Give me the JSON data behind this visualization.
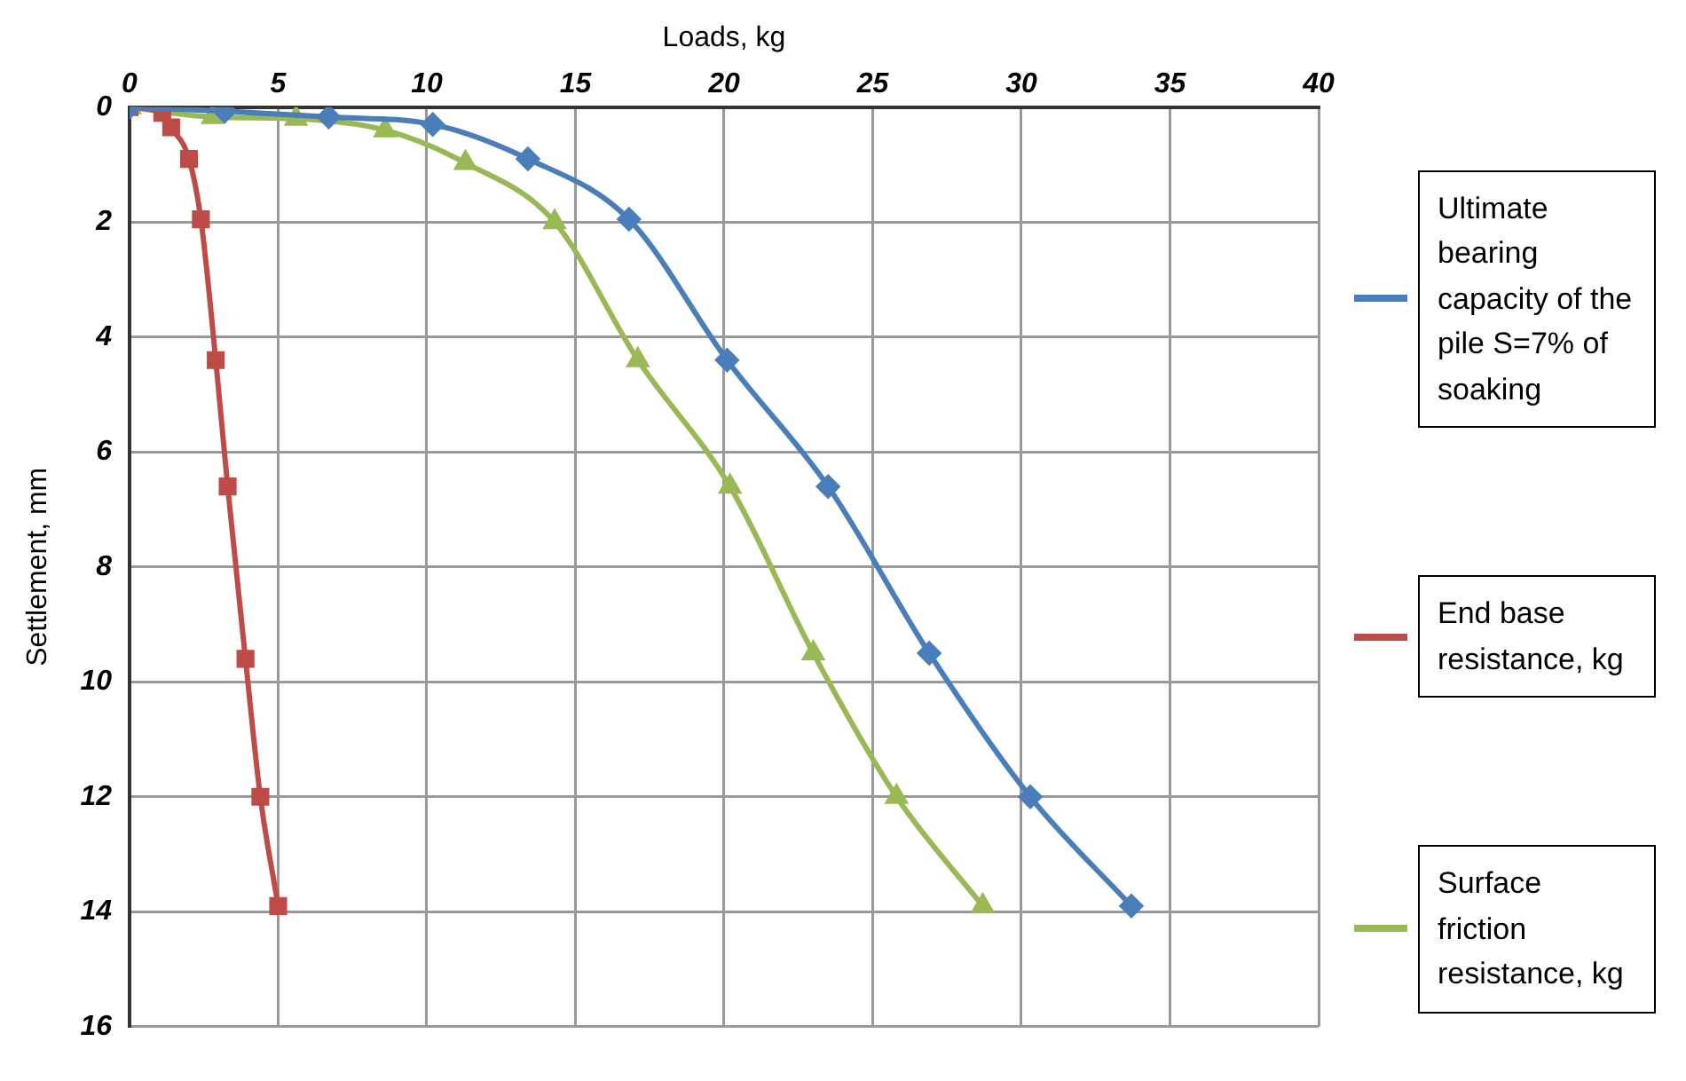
{
  "chart_data": {
    "type": "line",
    "xlabel": "Loads, kg",
    "ylabel": "Settlement, mm",
    "xlim": [
      0,
      40
    ],
    "xticks": [
      0,
      5,
      10,
      15,
      20,
      25,
      30,
      35,
      40
    ],
    "ylim": [
      16,
      0
    ],
    "yticks": [
      0,
      2,
      4,
      6,
      8,
      10,
      12,
      14,
      16
    ],
    "grid": true,
    "legend": "right",
    "series": [
      {
        "name": "Ultimate bearing capacity of the pile S=7% of soaking",
        "color": "#4a7ebb",
        "marker": "diamond",
        "x": [
          0,
          3.2,
          6.7,
          10.2,
          13.4,
          16.8,
          20.1,
          23.5,
          26.9,
          30.3,
          33.7
        ],
        "values": [
          0,
          0.07,
          0.17,
          0.3,
          0.9,
          1.95,
          4.4,
          6.6,
          9.5,
          12,
          13.9
        ]
      },
      {
        "name": "End base resistance, kg",
        "color": "#be4b48",
        "marker": "square",
        "x": [
          0,
          1.1,
          1.4,
          2,
          2.4,
          2.9,
          3.3,
          3.9,
          4.4,
          5
        ],
        "values": [
          0,
          0.1,
          0.35,
          0.9,
          1.95,
          4.4,
          6.6,
          9.6,
          12,
          13.9
        ]
      },
      {
        "name": "Surface friction resistance, kg",
        "color": "#98b954",
        "marker": "triangle",
        "x": [
          0,
          2.8,
          5.6,
          8.6,
          11.3,
          14.3,
          17.1,
          20.2,
          23,
          25.8,
          28.7
        ],
        "values": [
          0,
          0.17,
          0.2,
          0.4,
          0.97,
          2,
          4.4,
          6.6,
          9.5,
          12,
          13.9
        ]
      }
    ]
  }
}
